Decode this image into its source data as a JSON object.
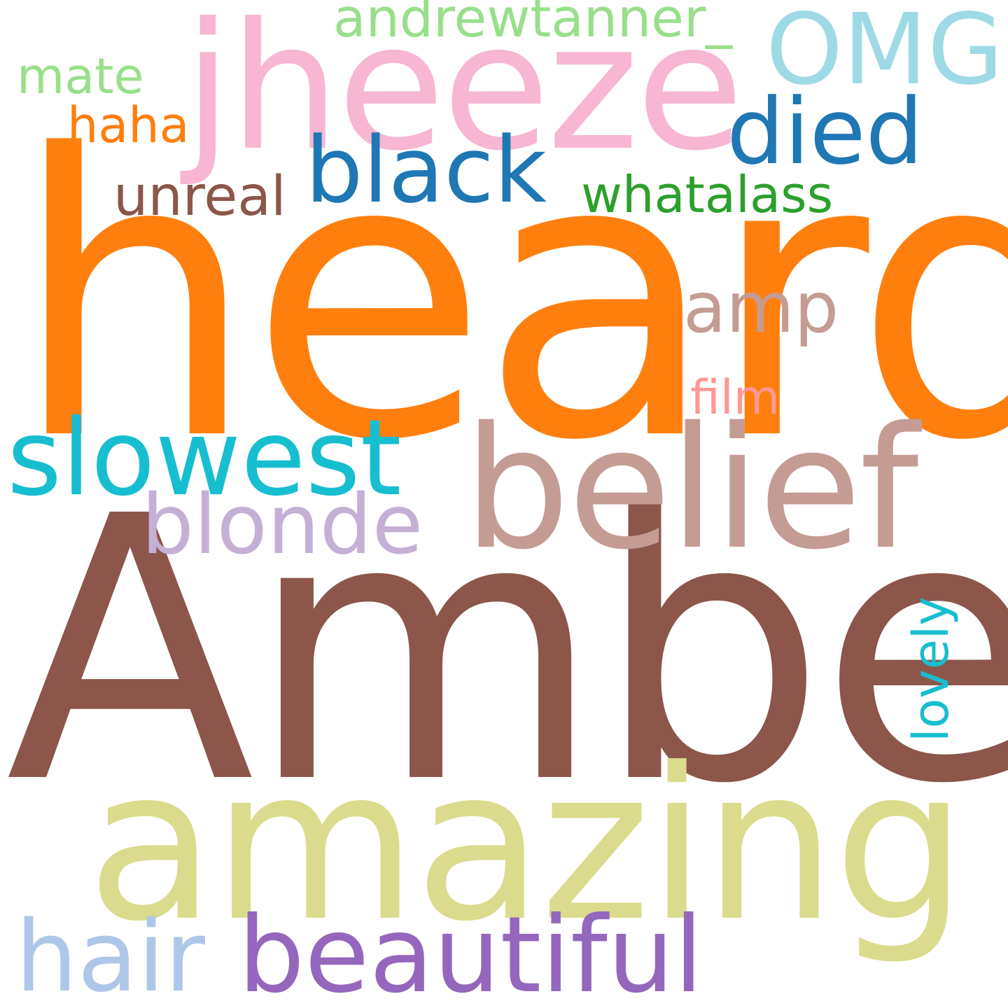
{
  "words": [
    {
      "text": "heard",
      "color": "#ff7f0e"
    },
    {
      "text": "Amber",
      "color": "#8c564b"
    },
    {
      "text": "amazing",
      "color": "#dbdb8d"
    },
    {
      "text": "jheeze",
      "color": "#f7b6d2"
    },
    {
      "text": "belief",
      "color": "#c49c94"
    },
    {
      "text": "beautiful",
      "color": "#9467bd"
    },
    {
      "text": "slowest",
      "color": "#17becf"
    },
    {
      "text": "OMG",
      "color": "#9edae5"
    },
    {
      "text": "hair",
      "color": "#aec7e8"
    },
    {
      "text": "died",
      "color": "#1f77b4"
    },
    {
      "text": "black",
      "color": "#1f77b4"
    },
    {
      "text": "blonde",
      "color": "#c5b0d5"
    },
    {
      "text": "amp",
      "color": "#c49c94"
    },
    {
      "text": "whatalass",
      "color": "#2ca02c"
    },
    {
      "text": "unreal",
      "color": "#8c564b"
    },
    {
      "text": "andrewtanner_",
      "color": "#98df8a"
    },
    {
      "text": "haha",
      "color": "#ff7f0e"
    },
    {
      "text": "mate",
      "color": "#98df8a"
    },
    {
      "text": "film",
      "color": "#ff9896"
    },
    {
      "text": "lovely",
      "color": "#17becf"
    }
  ]
}
